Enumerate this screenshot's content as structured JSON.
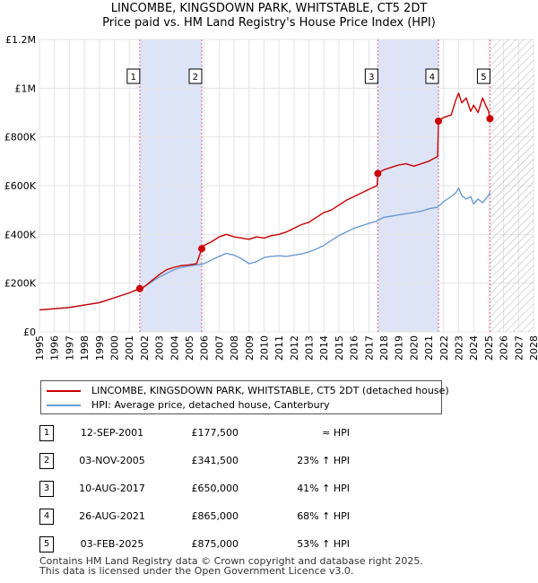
{
  "title": "LINCOMBE, KINGSDOWN PARK, WHITSTABLE, CT5 2DT",
  "subtitle": "Price paid vs. HM Land Registry's House Price Index (HPI)",
  "colors": {
    "property": "#cc0000",
    "hpi": "#6b9bd2",
    "shade": "#dde4f8"
  },
  "chart_data": {
    "type": "line",
    "title": "LINCOMBE, KINGSDOWN PARK, WHITSTABLE, CT5 2DT",
    "subtitle": "Price paid vs. HM Land Registry's House Price Index (HPI)",
    "xlabel": "",
    "ylabel": "",
    "xlim": [
      1995,
      2028
    ],
    "ylim": [
      0,
      1200000
    ],
    "y_ticks": [
      0,
      200000,
      400000,
      600000,
      800000,
      1000000,
      1200000
    ],
    "y_tick_labels": [
      "£0",
      "£200K",
      "£400K",
      "£600K",
      "£800K",
      "£1M",
      "£1.2M"
    ],
    "x_ticks": [
      1995,
      1996,
      1997,
      1998,
      1999,
      2000,
      2001,
      2002,
      2003,
      2004,
      2005,
      2006,
      2007,
      2008,
      2009,
      2010,
      2011,
      2012,
      2013,
      2014,
      2015,
      2016,
      2017,
      2018,
      2019,
      2020,
      2021,
      2022,
      2023,
      2024,
      2025,
      2026,
      2027,
      2028
    ],
    "grid": true,
    "hatched_future_from": 2025.1,
    "shaded_periods": [
      [
        2001.7,
        2005.84
      ],
      [
        2017.6,
        2021.65
      ]
    ],
    "series": [
      {
        "name": "LINCOMBE, KINGSDOWN PARK, WHITSTABLE, CT5 2DT (detached house)",
        "color": "#cc0000",
        "x": [
          1995.0,
          1996.0,
          1997.0,
          1998.0,
          1999.0,
          2000.0,
          2001.0,
          2001.7,
          2002.0,
          2002.5,
          2003.0,
          2003.5,
          2004.0,
          2004.5,
          2005.0,
          2005.5,
          2005.84,
          2006.0,
          2006.5,
          2007.0,
          2007.5,
          2008.0,
          2008.5,
          2009.0,
          2009.5,
          2010.0,
          2010.5,
          2011.0,
          2011.5,
          2012.0,
          2012.5,
          2013.0,
          2013.5,
          2014.0,
          2014.5,
          2015.0,
          2015.5,
          2016.0,
          2016.5,
          2017.0,
          2017.55,
          2017.6,
          2018.0,
          2018.5,
          2019.0,
          2019.5,
          2020.0,
          2020.5,
          2021.0,
          2021.6,
          2021.65,
          2022.0,
          2022.5,
          2022.8,
          2023.0,
          2023.2,
          2023.5,
          2023.8,
          2024.0,
          2024.3,
          2024.6,
          2024.8,
          2025.0,
          2025.09
        ],
        "y": [
          90000,
          95000,
          100000,
          110000,
          120000,
          140000,
          160000,
          177500,
          185000,
          210000,
          235000,
          255000,
          265000,
          272000,
          275000,
          280000,
          341500,
          355000,
          370000,
          390000,
          400000,
          390000,
          385000,
          380000,
          390000,
          385000,
          395000,
          400000,
          410000,
          425000,
          440000,
          450000,
          470000,
          490000,
          500000,
          520000,
          540000,
          555000,
          570000,
          585000,
          600000,
          650000,
          665000,
          675000,
          685000,
          690000,
          680000,
          690000,
          700000,
          720000,
          865000,
          880000,
          890000,
          950000,
          980000,
          940000,
          960000,
          905000,
          930000,
          900000,
          960000,
          930000,
          905000,
          875000
        ]
      },
      {
        "name": "HPI: Average price, detached house, Canterbury",
        "color": "#6b9bd2",
        "x": [
          1995.0,
          1996.0,
          1997.0,
          1998.0,
          1999.0,
          2000.0,
          2001.0,
          2001.7,
          2002.0,
          2002.5,
          2003.0,
          2003.5,
          2004.0,
          2004.5,
          2005.0,
          2005.5,
          2005.84,
          2006.0,
          2006.5,
          2007.0,
          2007.5,
          2008.0,
          2008.5,
          2009.0,
          2009.5,
          2010.0,
          2010.5,
          2011.0,
          2011.5,
          2012.0,
          2012.5,
          2013.0,
          2013.5,
          2014.0,
          2014.5,
          2015.0,
          2015.5,
          2016.0,
          2016.5,
          2017.0,
          2017.55,
          2017.6,
          2018.0,
          2018.5,
          2019.0,
          2019.5,
          2020.0,
          2020.5,
          2021.0,
          2021.6,
          2021.65,
          2022.0,
          2022.5,
          2022.8,
          2023.0,
          2023.2,
          2023.5,
          2023.8,
          2024.0,
          2024.3,
          2024.6,
          2024.8,
          2025.0,
          2025.09
        ],
        "y": [
          90000,
          95000,
          100000,
          110000,
          120000,
          140000,
          160000,
          177500,
          185000,
          205000,
          225000,
          240000,
          255000,
          265000,
          270000,
          275000,
          278000,
          280000,
          295000,
          310000,
          322000,
          315000,
          300000,
          280000,
          288000,
          305000,
          310000,
          312000,
          310000,
          315000,
          320000,
          328000,
          340000,
          355000,
          375000,
          395000,
          410000,
          425000,
          435000,
          445000,
          455000,
          458000,
          470000,
          475000,
          480000,
          485000,
          490000,
          495000,
          505000,
          512000,
          515000,
          535000,
          555000,
          570000,
          590000,
          560000,
          545000,
          555000,
          525000,
          545000,
          530000,
          545000,
          560000,
          572000
        ]
      }
    ],
    "sales": [
      {
        "label": "1",
        "x": 2001.7,
        "y": 177500
      },
      {
        "label": "2",
        "x": 2005.84,
        "y": 341500
      },
      {
        "label": "3",
        "x": 2017.6,
        "y": 650000
      },
      {
        "label": "4",
        "x": 2021.65,
        "y": 865000
      },
      {
        "label": "5",
        "x": 2025.09,
        "y": 875000
      }
    ]
  },
  "legend": {
    "property": "LINCOMBE, KINGSDOWN PARK, WHITSTABLE, CT5 2DT (detached house)",
    "hpi": "HPI: Average price, detached house, Canterbury"
  },
  "sales_table": [
    {
      "num": "1",
      "date": "12-SEP-2001",
      "price": "£177,500",
      "rel": "≈ HPI"
    },
    {
      "num": "2",
      "date": "03-NOV-2005",
      "price": "£341,500",
      "rel": "23% ↑ HPI"
    },
    {
      "num": "3",
      "date": "10-AUG-2017",
      "price": "£650,000",
      "rel": "41% ↑ HPI"
    },
    {
      "num": "4",
      "date": "26-AUG-2021",
      "price": "£865,000",
      "rel": "68% ↑ HPI"
    },
    {
      "num": "5",
      "date": "03-FEB-2025",
      "price": "£875,000",
      "rel": "53% ↑ HPI"
    }
  ],
  "footer": {
    "line1": "Contains HM Land Registry data © Crown copyright and database right 2025.",
    "line2": "This data is licensed under the Open Government Licence v3.0."
  }
}
